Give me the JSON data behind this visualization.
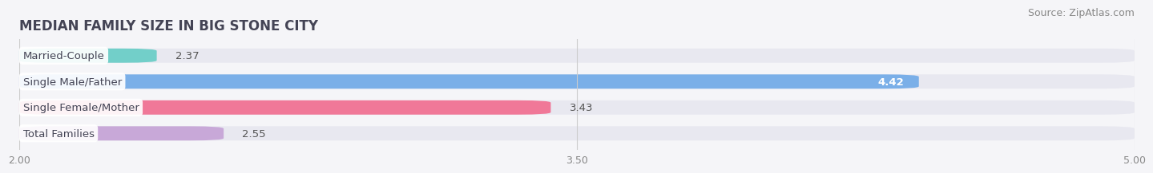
{
  "title": "MEDIAN FAMILY SIZE IN BIG STONE CITY",
  "source": "Source: ZipAtlas.com",
  "categories": [
    "Married-Couple",
    "Single Male/Father",
    "Single Female/Mother",
    "Total Families"
  ],
  "values": [
    2.37,
    4.42,
    3.43,
    2.55
  ],
  "bar_colors": [
    "#72cfc9",
    "#7aafe8",
    "#f07898",
    "#c8a8d8"
  ],
  "bar_bg_color": "#e8e8f0",
  "value_color_inside": "#ffffff",
  "value_color_outside": "#555555",
  "xlim_min": 2.0,
  "xlim_max": 5.0,
  "xticks": [
    2.0,
    3.5,
    5.0
  ],
  "bar_height": 0.55,
  "label_fontsize": 9.5,
  "value_fontsize": 9.5,
  "title_fontsize": 12,
  "source_fontsize": 9,
  "bg_color": "#f5f5f8",
  "title_color": "#444455",
  "label_color": "#444455",
  "tick_color": "#888888"
}
